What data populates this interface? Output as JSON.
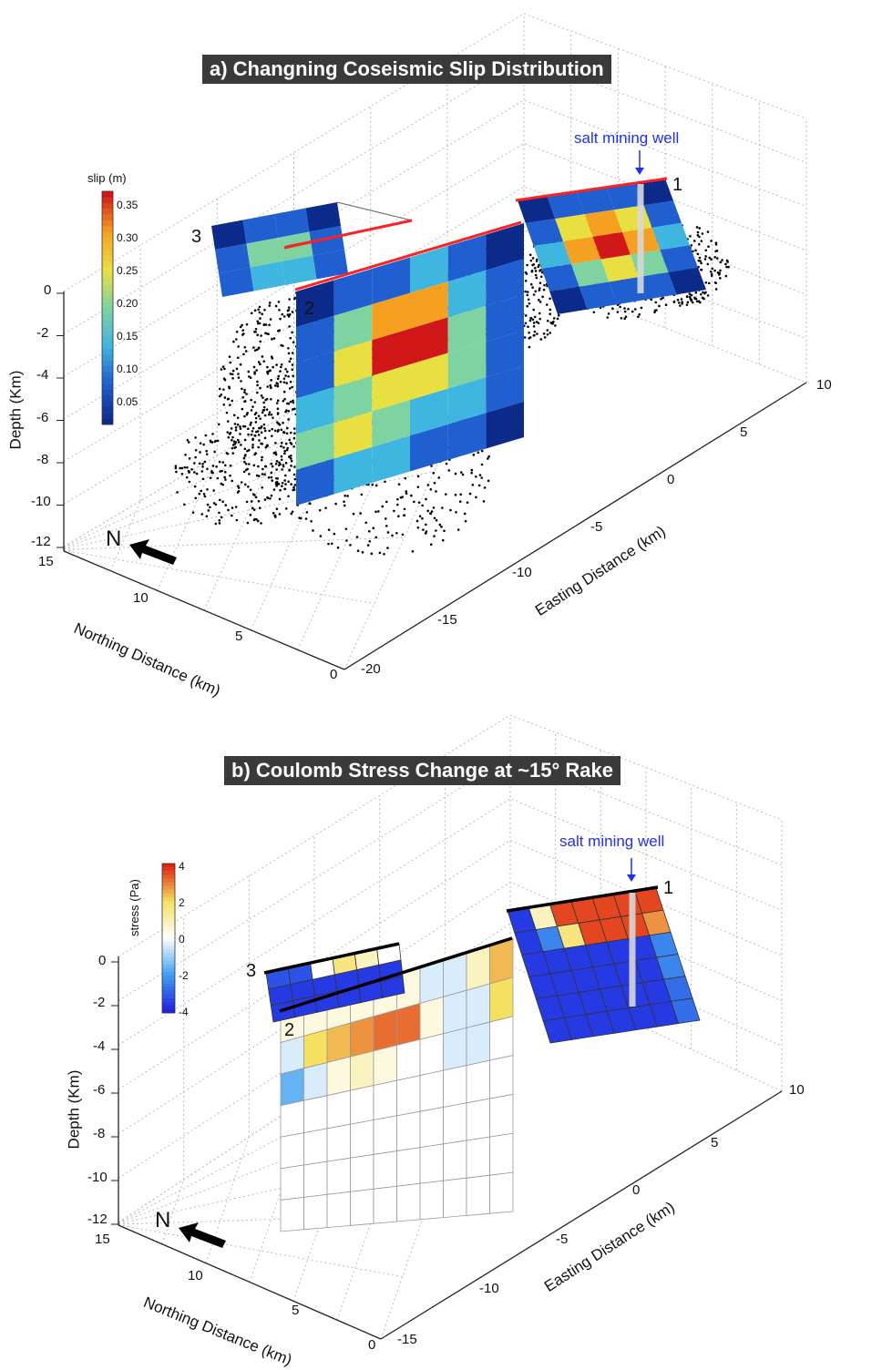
{
  "panels": [
    {
      "title": "a) Changning Coseismic Slip Distribution",
      "well_label": "salt mining well",
      "colorbar": {
        "label": "slip (m)",
        "ticks": [
          "0.35",
          "0.30",
          "0.25",
          "0.20",
          "0.15",
          "0.10",
          "0.05"
        ]
      },
      "depth_axis": {
        "label": "Depth (Km)",
        "ticks": [
          "0",
          "-2",
          "-4",
          "-6",
          "-8",
          "-10",
          "-12"
        ]
      },
      "northing_axis": {
        "label": "Northing Distance (km)",
        "ticks": [
          "15",
          "10",
          "5",
          "0"
        ]
      },
      "easting_axis": {
        "label": "Easting Distance (km)",
        "ticks": [
          "-20",
          "-15",
          "-10",
          "-5",
          "0",
          "5",
          "10"
        ]
      },
      "north_label": "N",
      "fault_labels": [
        "1",
        "2",
        "3"
      ]
    },
    {
      "title": "b) Coulomb Stress Change at ~15° Rake",
      "well_label": "salt mining well",
      "colorbar": {
        "label": "stress (Pa)",
        "ticks": [
          "4",
          "2",
          "0",
          "-2",
          "-4"
        ]
      },
      "depth_axis": {
        "label": "Depth (Km)",
        "ticks": [
          "0",
          "-2",
          "-4",
          "-6",
          "-8",
          "-10",
          "-12"
        ]
      },
      "northing_axis": {
        "label": "Northing Distance (km)",
        "ticks": [
          "15",
          "10",
          "5",
          "0"
        ]
      },
      "easting_axis": {
        "label": "Easting Distance (km)",
        "ticks": [
          "-15",
          "-10",
          "-5",
          "0",
          "5",
          "10"
        ]
      },
      "north_label": "N",
      "fault_labels": [
        "1",
        "2",
        "3"
      ]
    }
  ],
  "colors": {
    "title_bg": "#3a3a3a",
    "well_label": "#1f2fff",
    "fault_trace_a": "#ff2020",
    "fault_trace_b": "#000000",
    "slip_colormap": [
      "#0b2a8a",
      "#1f5fcf",
      "#3fb6e0",
      "#7fd3a0",
      "#e8e040",
      "#f5a020",
      "#d01818"
    ],
    "stress_colormap": [
      "#2020e0",
      "#40a0f0",
      "#ffffff",
      "#f5e060",
      "#e02010"
    ]
  }
}
